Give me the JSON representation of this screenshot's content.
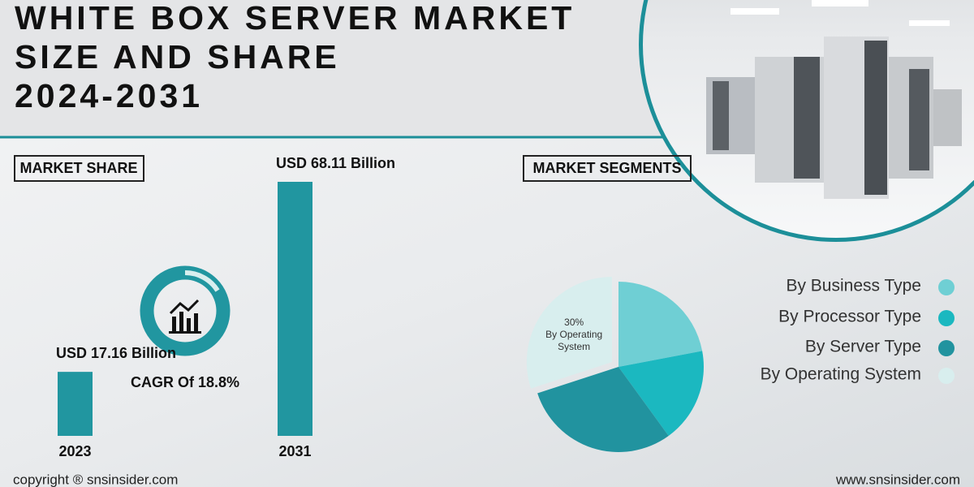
{
  "header": {
    "title_lines": [
      "WHITE BOX SERVER MARKET",
      "SIZE AND SHARE",
      "2024-2031"
    ]
  },
  "market_share": {
    "label": "MARKET SHARE",
    "color": "#2196a0",
    "cagr": "CAGR Of 18.8%",
    "bars": [
      {
        "year": "2023",
        "value": 17.16,
        "value_label": "USD 17.16 Billion"
      },
      {
        "year": "2031",
        "value": 68.11,
        "value_label": "USD 68.11 Billion"
      }
    ]
  },
  "market_segments": {
    "label": "MARKET SEGMENTS",
    "segments": [
      {
        "name": "By Business Type",
        "value": 22,
        "color": "#6fcfd4"
      },
      {
        "name": "By Processor Type",
        "value": 18,
        "color": "#1bb8c0"
      },
      {
        "name": "By Server Type",
        "value": 30,
        "color": "#21939f"
      },
      {
        "name": "By Operating System",
        "value": 30,
        "value_label": "30%",
        "color": "#d8eeee"
      }
    ]
  },
  "footer": {
    "copyright": "copyright ® snsinsider.com",
    "website": "www.snsinsider.com"
  }
}
